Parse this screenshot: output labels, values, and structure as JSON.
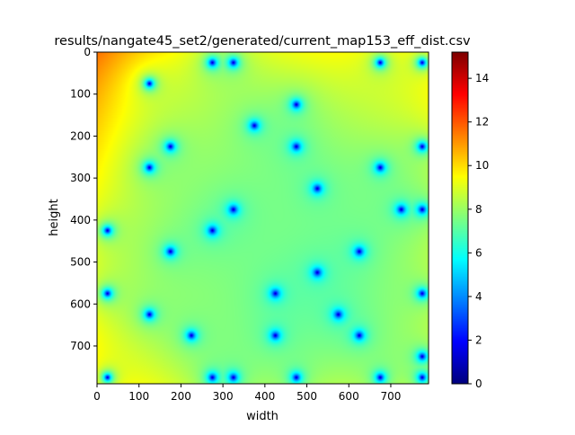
{
  "chart_data": {
    "type": "heatmap",
    "title": "results/nangate45_set2/generated/current_map153_eff_dist.csv",
    "xlabel": "width",
    "ylabel": "height",
    "xlim": [
      0,
      790
    ],
    "ylim": [
      790,
      0
    ],
    "x_ticks": [
      0,
      100,
      200,
      300,
      400,
      500,
      600,
      700
    ],
    "y_ticks": [
      0,
      100,
      200,
      300,
      400,
      500,
      600,
      700
    ],
    "colormap": "jet",
    "colorbar": {
      "range": [
        0,
        15.2
      ],
      "ticks": [
        0,
        2,
        4,
        6,
        8,
        10,
        12,
        14
      ]
    },
    "sources": [
      {
        "x": 275,
        "y": 25
      },
      {
        "x": 325,
        "y": 25
      },
      {
        "x": 675,
        "y": 25
      },
      {
        "x": 775,
        "y": 25
      },
      {
        "x": 125,
        "y": 75
      },
      {
        "x": 475,
        "y": 125
      },
      {
        "x": 375,
        "y": 175
      },
      {
        "x": 175,
        "y": 225
      },
      {
        "x": 475,
        "y": 225
      },
      {
        "x": 775,
        "y": 225
      },
      {
        "x": 125,
        "y": 275
      },
      {
        "x": 675,
        "y": 275
      },
      {
        "x": 525,
        "y": 325
      },
      {
        "x": 325,
        "y": 375
      },
      {
        "x": 725,
        "y": 375
      },
      {
        "x": 775,
        "y": 375
      },
      {
        "x": 25,
        "y": 425
      },
      {
        "x": 275,
        "y": 425
      },
      {
        "x": 175,
        "y": 475
      },
      {
        "x": 625,
        "y": 475
      },
      {
        "x": 525,
        "y": 525
      },
      {
        "x": 25,
        "y": 575
      },
      {
        "x": 425,
        "y": 575
      },
      {
        "x": 775,
        "y": 575
      },
      {
        "x": 125,
        "y": 625
      },
      {
        "x": 575,
        "y": 625
      },
      {
        "x": 225,
        "y": 675
      },
      {
        "x": 425,
        "y": 675
      },
      {
        "x": 625,
        "y": 675
      },
      {
        "x": 775,
        "y": 725
      },
      {
        "x": 25,
        "y": 775
      },
      {
        "x": 275,
        "y": 775
      },
      {
        "x": 325,
        "y": 775
      },
      {
        "x": 475,
        "y": 775
      },
      {
        "x": 675,
        "y": 775
      },
      {
        "x": 775,
        "y": 775
      }
    ]
  }
}
